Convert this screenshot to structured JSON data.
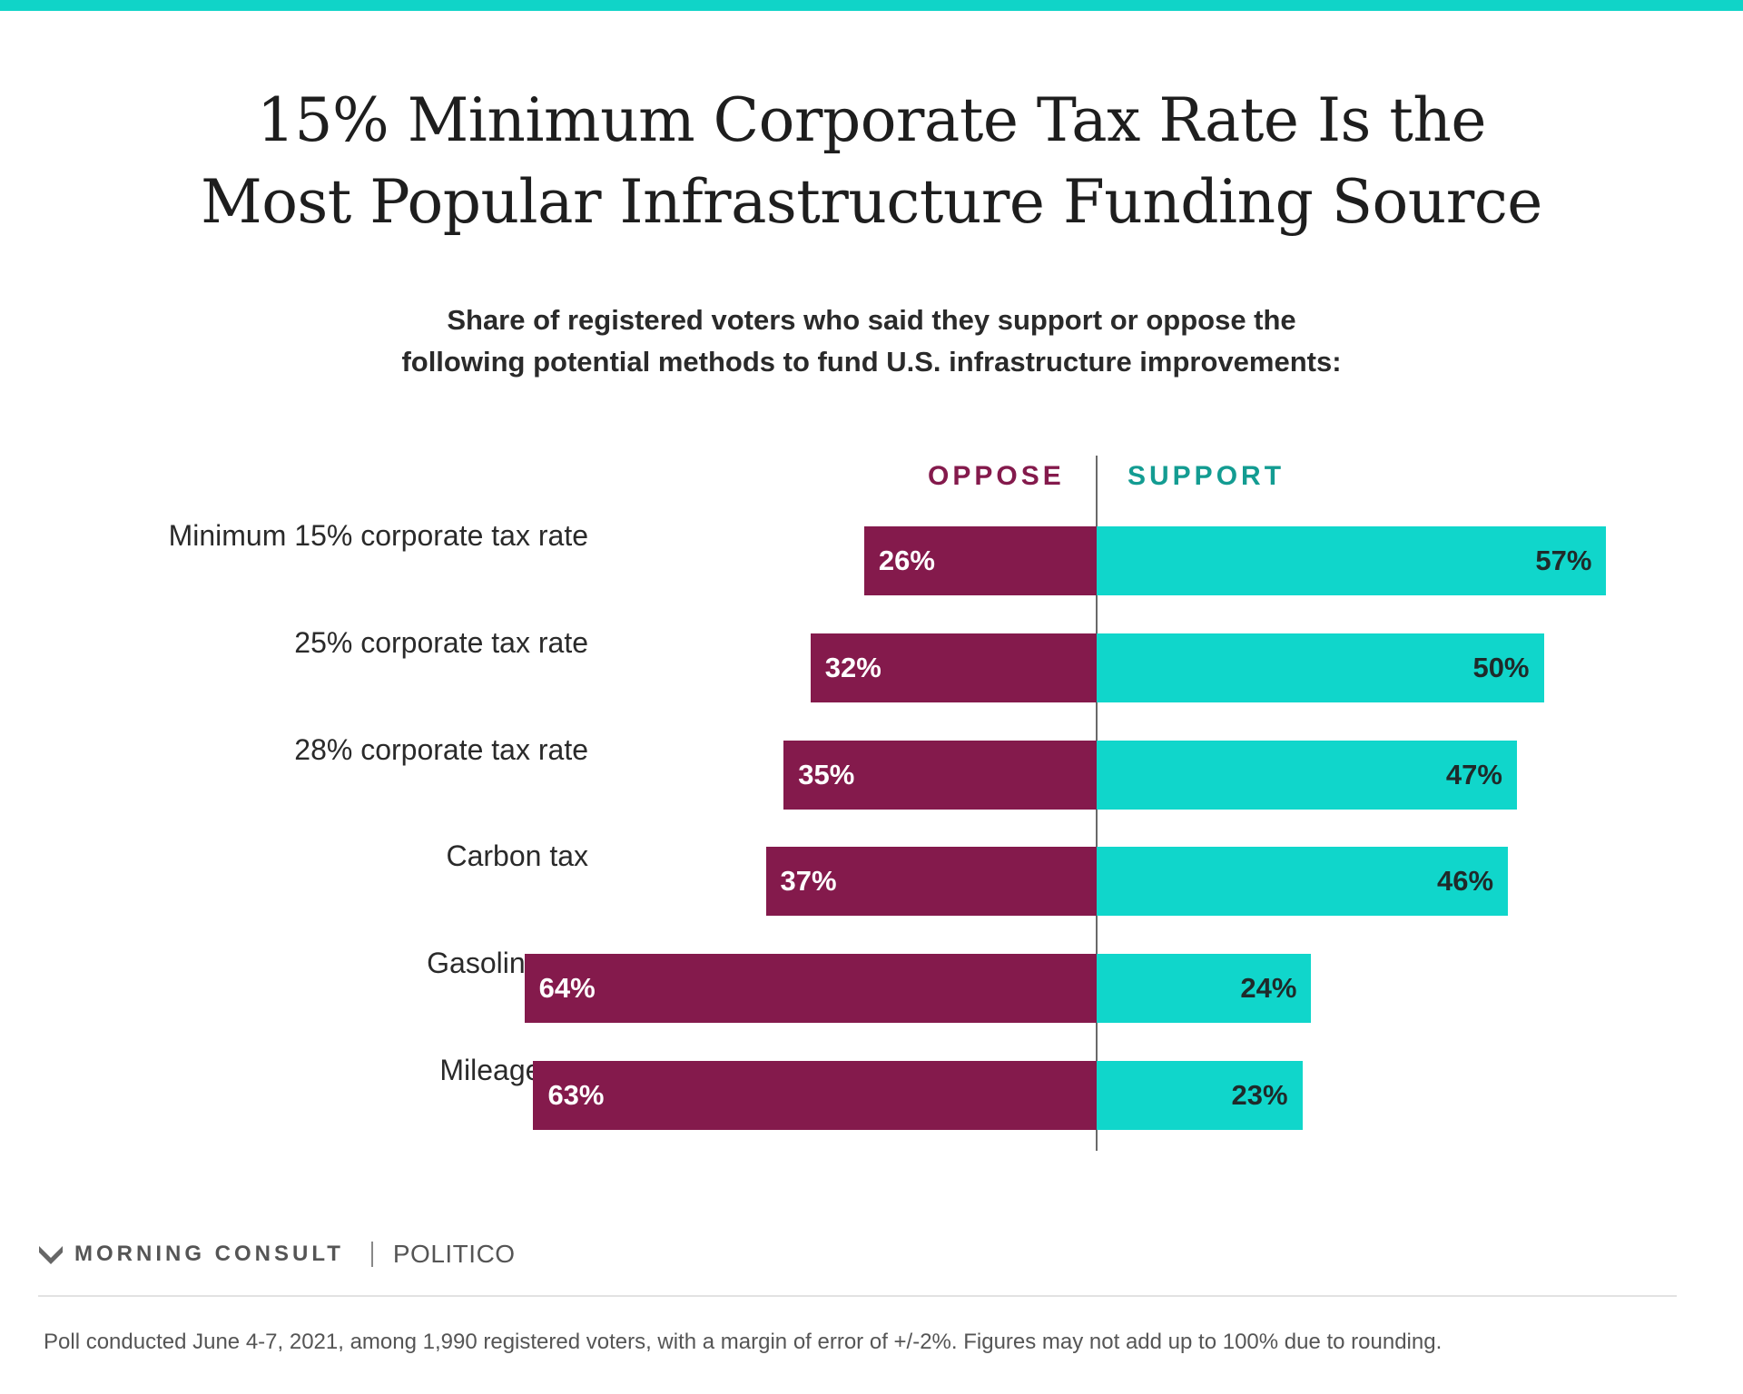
{
  "title_lines": [
    "15% Minimum Corporate Tax Rate Is the",
    "Most Popular Infrastructure Funding Source"
  ],
  "subtitle_lines": [
    "Share of registered voters who said they support or oppose the",
    "following potential methods to fund U.S. infrastructure improvements:"
  ],
  "colors": {
    "oppose": "#841a4c",
    "support": "#10d6cb",
    "accent_bar": "#10d4c8"
  },
  "chart_data": {
    "type": "bar",
    "orientation": "horizontal-diverging",
    "categories": [
      "Minimum 15% corporate tax rate",
      "25% corporate tax rate",
      "28% corporate tax rate",
      "Carbon tax",
      "Gasoline tax",
      "Mileage tax"
    ],
    "series": [
      {
        "name": "OPPOSE",
        "values": [
          26,
          32,
          35,
          37,
          64,
          63
        ],
        "labels": [
          "26%",
          "32%",
          "35%",
          "37%",
          "64%",
          "63%"
        ]
      },
      {
        "name": "SUPPORT",
        "values": [
          57,
          50,
          47,
          46,
          24,
          23
        ],
        "labels": [
          "57%",
          "50%",
          "47%",
          "46%",
          "24%",
          "23%"
        ]
      }
    ],
    "unit": "%",
    "grid": false,
    "legend": "top-center"
  },
  "branding": {
    "left": "MORNING CONSULT",
    "right": "POLITICO"
  },
  "footnote": "Poll conducted June 4-7, 2021, among 1,990 registered voters, with a margin of error of +/-2%. Figures may not add up to 100% due to rounding."
}
